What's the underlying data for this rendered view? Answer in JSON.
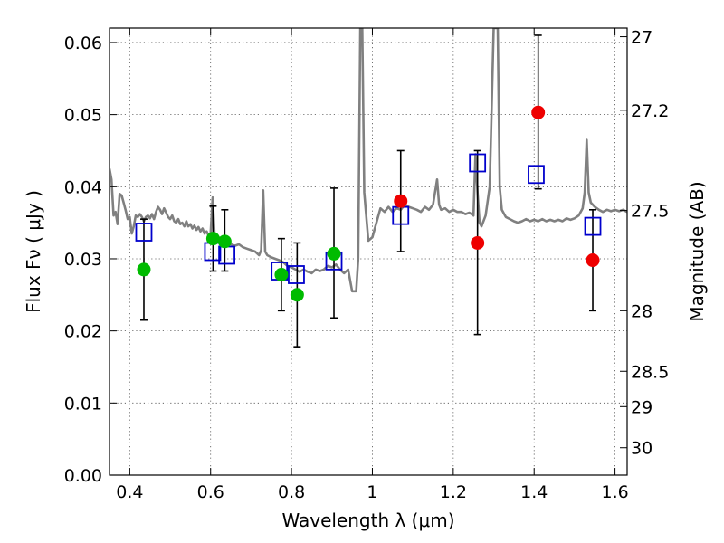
{
  "chart_data": {
    "type": "scatter",
    "xlabel": "Wavelength  λ (μm)",
    "ylabel_left": "Flux  Fν  ( μJy )",
    "ylabel_right": "Magnitude (AB)",
    "xlim": [
      0.35,
      1.63
    ],
    "ylim": [
      0.0,
      0.062
    ],
    "x_ticks": [
      0.4,
      0.6,
      0.8,
      1.0,
      1.2,
      1.4,
      1.6
    ],
    "x_tick_labels": [
      "0.4",
      "0.6",
      "0.8",
      "1",
      "1.2",
      "1.4",
      "1.6"
    ],
    "y_ticks": [
      0.0,
      0.01,
      0.02,
      0.03,
      0.04,
      0.05,
      0.06
    ],
    "y_tick_labels": [
      "0.00",
      "0.01",
      "0.02",
      "0.03",
      "0.04",
      "0.05",
      "0.06"
    ],
    "right_ticks": [
      {
        "flux": 0.0608,
        "label": "27"
      },
      {
        "flux": 0.0506,
        "label": "27.2"
      },
      {
        "flux": 0.0367,
        "label": "27.5"
      },
      {
        "flux": 0.0228,
        "label": "28"
      },
      {
        "flux": 0.0144,
        "label": "28.5"
      },
      {
        "flux": 0.0095,
        "label": "29"
      },
      {
        "flux": 0.0038,
        "label": "30"
      }
    ],
    "grid": true,
    "colors": {
      "green": "#00bb00",
      "red": "#ee0000",
      "model_box": "#0000cc",
      "sed": "#808080",
      "errorbar": "#000000"
    },
    "series": [
      {
        "points": [
          {
            "x": 0.435,
            "y": 0.0285,
            "err_lo": 0.0215,
            "err_hi": 0.0355
          },
          {
            "x": 0.606,
            "y": 0.0328,
            "err_lo": 0.0283,
            "err_hi": 0.0373
          },
          {
            "x": 0.635,
            "y": 0.0324,
            "err_lo": 0.0283,
            "err_hi": 0.0368
          },
          {
            "x": 0.775,
            "y": 0.0278,
            "err_lo": 0.0228,
            "err_hi": 0.0328
          },
          {
            "x": 0.814,
            "y": 0.025,
            "err_lo": 0.0178,
            "err_hi": 0.0322
          },
          {
            "x": 0.905,
            "y": 0.0307,
            "err_lo": 0.0218,
            "err_hi": 0.0398
          }
        ]
      },
      {
        "points": [
          {
            "x": 1.07,
            "y": 0.038,
            "err_lo": 0.031,
            "err_hi": 0.045
          },
          {
            "x": 1.26,
            "y": 0.0322,
            "err_lo": 0.0195,
            "err_hi": 0.045
          },
          {
            "x": 1.41,
            "y": 0.0503,
            "err_lo": 0.0397,
            "err_hi": 0.061
          },
          {
            "x": 1.545,
            "y": 0.0298,
            "err_lo": 0.0228,
            "err_hi": 0.0368
          }
        ]
      },
      {
        "points": [
          {
            "x": 0.435,
            "y": 0.0337
          },
          {
            "x": 0.605,
            "y": 0.031
          },
          {
            "x": 0.64,
            "y": 0.0305
          },
          {
            "x": 0.77,
            "y": 0.0283
          },
          {
            "x": 0.812,
            "y": 0.0278
          },
          {
            "x": 0.905,
            "y": 0.0297
          },
          {
            "x": 1.07,
            "y": 0.036
          },
          {
            "x": 1.26,
            "y": 0.0433
          },
          {
            "x": 1.405,
            "y": 0.0417
          },
          {
            "x": 1.545,
            "y": 0.0345
          }
        ]
      },
      {
        "points": [
          [
            0.35,
            0.0425
          ],
          [
            0.355,
            0.041
          ],
          [
            0.36,
            0.036
          ],
          [
            0.365,
            0.0365
          ],
          [
            0.37,
            0.0348
          ],
          [
            0.375,
            0.039
          ],
          [
            0.38,
            0.0388
          ],
          [
            0.385,
            0.0378
          ],
          [
            0.39,
            0.0367
          ],
          [
            0.395,
            0.0355
          ],
          [
            0.4,
            0.0358
          ],
          [
            0.405,
            0.0335
          ],
          [
            0.41,
            0.0345
          ],
          [
            0.415,
            0.036
          ],
          [
            0.42,
            0.0358
          ],
          [
            0.425,
            0.0362
          ],
          [
            0.43,
            0.0358
          ],
          [
            0.435,
            0.0352
          ],
          [
            0.44,
            0.0358
          ],
          [
            0.445,
            0.036
          ],
          [
            0.45,
            0.0356
          ],
          [
            0.455,
            0.0362
          ],
          [
            0.46,
            0.0355
          ],
          [
            0.465,
            0.0365
          ],
          [
            0.47,
            0.0372
          ],
          [
            0.475,
            0.0368
          ],
          [
            0.48,
            0.0362
          ],
          [
            0.485,
            0.037
          ],
          [
            0.49,
            0.0364
          ],
          [
            0.495,
            0.0358
          ],
          [
            0.5,
            0.0355
          ],
          [
            0.505,
            0.036
          ],
          [
            0.51,
            0.0352
          ],
          [
            0.515,
            0.035
          ],
          [
            0.52,
            0.0355
          ],
          [
            0.525,
            0.0348
          ],
          [
            0.53,
            0.035
          ],
          [
            0.535,
            0.0345
          ],
          [
            0.54,
            0.0352
          ],
          [
            0.545,
            0.0345
          ],
          [
            0.55,
            0.0348
          ],
          [
            0.555,
            0.0342
          ],
          [
            0.56,
            0.0346
          ],
          [
            0.565,
            0.034
          ],
          [
            0.57,
            0.0344
          ],
          [
            0.575,
            0.0338
          ],
          [
            0.58,
            0.0342
          ],
          [
            0.585,
            0.0335
          ],
          [
            0.59,
            0.0338
          ],
          [
            0.595,
            0.0332
          ],
          [
            0.6,
            0.0335
          ],
          [
            0.605,
            0.0385
          ],
          [
            0.61,
            0.033
          ],
          [
            0.615,
            0.0328
          ],
          [
            0.62,
            0.033
          ],
          [
            0.625,
            0.0325
          ],
          [
            0.63,
            0.0328
          ],
          [
            0.635,
            0.0325
          ],
          [
            0.64,
            0.0322
          ],
          [
            0.645,
            0.0325
          ],
          [
            0.65,
            0.032
          ],
          [
            0.66,
            0.0318
          ],
          [
            0.67,
            0.032
          ],
          [
            0.68,
            0.0316
          ],
          [
            0.69,
            0.0314
          ],
          [
            0.7,
            0.0312
          ],
          [
            0.71,
            0.031
          ],
          [
            0.72,
            0.0305
          ],
          [
            0.725,
            0.0312
          ],
          [
            0.73,
            0.0395
          ],
          [
            0.735,
            0.031
          ],
          [
            0.74,
            0.0305
          ],
          [
            0.75,
            0.0302
          ],
          [
            0.76,
            0.03
          ],
          [
            0.77,
            0.0298
          ],
          [
            0.78,
            0.0295
          ],
          [
            0.79,
            0.029
          ],
          [
            0.8,
            0.0288
          ],
          [
            0.81,
            0.0285
          ],
          [
            0.82,
            0.0282
          ],
          [
            0.83,
            0.0285
          ],
          [
            0.84,
            0.0282
          ],
          [
            0.85,
            0.028
          ],
          [
            0.86,
            0.0285
          ],
          [
            0.87,
            0.0283
          ],
          [
            0.88,
            0.0285
          ],
          [
            0.89,
            0.029
          ],
          [
            0.9,
            0.0288
          ],
          [
            0.91,
            0.0292
          ],
          [
            0.92,
            0.0285
          ],
          [
            0.93,
            0.028
          ],
          [
            0.94,
            0.0285
          ],
          [
            0.95,
            0.0255
          ],
          [
            0.96,
            0.0255
          ],
          [
            0.965,
            0.03
          ],
          [
            0.97,
            0.062
          ],
          [
            0.975,
            0.062
          ],
          [
            0.98,
            0.0392
          ],
          [
            0.99,
            0.0325
          ],
          [
            1.0,
            0.033
          ],
          [
            1.01,
            0.035
          ],
          [
            1.02,
            0.037
          ],
          [
            1.03,
            0.0365
          ],
          [
            1.04,
            0.0372
          ],
          [
            1.05,
            0.0365
          ],
          [
            1.06,
            0.037
          ],
          [
            1.07,
            0.0368
          ],
          [
            1.08,
            0.0375
          ],
          [
            1.09,
            0.0372
          ],
          [
            1.1,
            0.037
          ],
          [
            1.11,
            0.0368
          ],
          [
            1.12,
            0.0365
          ],
          [
            1.13,
            0.0372
          ],
          [
            1.14,
            0.0368
          ],
          [
            1.15,
            0.0375
          ],
          [
            1.16,
            0.041
          ],
          [
            1.165,
            0.0375
          ],
          [
            1.17,
            0.0368
          ],
          [
            1.18,
            0.037
          ],
          [
            1.19,
            0.0365
          ],
          [
            1.2,
            0.0368
          ],
          [
            1.21,
            0.0365
          ],
          [
            1.22,
            0.0365
          ],
          [
            1.23,
            0.0362
          ],
          [
            1.24,
            0.0364
          ],
          [
            1.25,
            0.036
          ],
          [
            1.255,
            0.0445
          ],
          [
            1.26,
            0.0392
          ],
          [
            1.265,
            0.035
          ],
          [
            1.27,
            0.0345
          ],
          [
            1.28,
            0.036
          ],
          [
            1.29,
            0.04
          ],
          [
            1.3,
            0.062
          ],
          [
            1.31,
            0.062
          ],
          [
            1.315,
            0.04
          ],
          [
            1.32,
            0.0368
          ],
          [
            1.33,
            0.0358
          ],
          [
            1.34,
            0.0355
          ],
          [
            1.35,
            0.0352
          ],
          [
            1.36,
            0.035
          ],
          [
            1.37,
            0.0352
          ],
          [
            1.38,
            0.0355
          ],
          [
            1.39,
            0.0352
          ],
          [
            1.4,
            0.0354
          ],
          [
            1.41,
            0.0352
          ],
          [
            1.42,
            0.0355
          ],
          [
            1.43,
            0.0352
          ],
          [
            1.44,
            0.0354
          ],
          [
            1.45,
            0.0352
          ],
          [
            1.46,
            0.0354
          ],
          [
            1.47,
            0.0352
          ],
          [
            1.48,
            0.0356
          ],
          [
            1.49,
            0.0354
          ],
          [
            1.5,
            0.0356
          ],
          [
            1.51,
            0.036
          ],
          [
            1.52,
            0.037
          ],
          [
            1.525,
            0.0392
          ],
          [
            1.53,
            0.0465
          ],
          [
            1.535,
            0.0392
          ],
          [
            1.54,
            0.0378
          ],
          [
            1.55,
            0.0372
          ],
          [
            1.56,
            0.0368
          ],
          [
            1.57,
            0.0365
          ],
          [
            1.58,
            0.0368
          ],
          [
            1.59,
            0.0366
          ],
          [
            1.6,
            0.0368
          ],
          [
            1.61,
            0.0366
          ],
          [
            1.62,
            0.0368
          ],
          [
            1.63,
            0.0365
          ]
        ]
      }
    ]
  }
}
